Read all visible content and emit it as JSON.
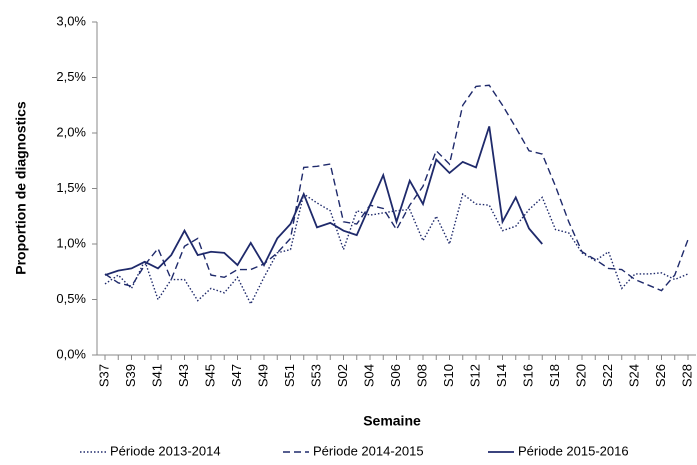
{
  "chart_data": {
    "type": "line",
    "y_label": "Proportion de diagnostics",
    "x_label": "Semaine",
    "categories": [
      "S37",
      null,
      "S39",
      null,
      "S41",
      null,
      "S43",
      null,
      "S45",
      null,
      "S47",
      null,
      "S49",
      null,
      "S51",
      null,
      "S53",
      null,
      "S02",
      null,
      "S04",
      null,
      "S06",
      null,
      "S08",
      null,
      "S10",
      null,
      "S12",
      null,
      "S14",
      null,
      "S16",
      null,
      "S18",
      null,
      "S20",
      null,
      "S22",
      null,
      "S24",
      null,
      "S26",
      null,
      "S28"
    ],
    "series": [
      {
        "name": "Période 2013-2014",
        "color": "#1f2a6b",
        "dash": "dotted",
        "values": [
          0.64,
          0.72,
          0.6,
          0.85,
          0.5,
          0.68,
          0.68,
          0.49,
          0.6,
          0.56,
          0.7,
          0.46,
          0.7,
          0.92,
          0.95,
          1.45,
          1.37,
          1.3,
          0.95,
          1.3,
          1.26,
          1.28,
          1.3,
          1.31,
          1.03,
          1.25,
          1.0,
          1.45,
          1.36,
          1.35,
          1.12,
          1.16,
          1.31,
          1.42,
          1.13,
          1.1,
          0.92,
          0.85,
          0.93,
          0.6,
          0.73,
          0.73,
          0.74,
          0.68,
          0.73
        ]
      },
      {
        "name": "Période 2014-2015",
        "color": "#1f2a6b",
        "dash": "dashed",
        "values": [
          0.73,
          0.65,
          0.62,
          0.81,
          0.96,
          0.68,
          0.98,
          1.05,
          0.72,
          0.7,
          0.77,
          0.77,
          0.82,
          0.92,
          1.05,
          1.69,
          1.7,
          1.72,
          1.2,
          1.18,
          1.35,
          1.32,
          1.13,
          1.35,
          1.52,
          1.84,
          1.72,
          2.25,
          2.42,
          2.43,
          2.25,
          2.05,
          1.84,
          1.81,
          1.52,
          1.2,
          0.93,
          0.86,
          0.78,
          0.77,
          0.68,
          0.63,
          0.58,
          0.72,
          1.04
        ]
      },
      {
        "name": "Période 2015-2016",
        "color": "#1f2a6b",
        "dash": "solid",
        "values": [
          0.72,
          0.76,
          0.78,
          0.84,
          0.78,
          0.9,
          1.12,
          0.9,
          0.93,
          0.92,
          0.81,
          1.01,
          0.81,
          1.05,
          1.18,
          1.45,
          1.15,
          1.19,
          1.12,
          1.08,
          1.35,
          1.62,
          1.2,
          1.57,
          1.36,
          1.76,
          1.64,
          1.74,
          1.69,
          2.06,
          1.2,
          1.42,
          1.14,
          1.0,
          null,
          null,
          null,
          null,
          null,
          null,
          null,
          null,
          null,
          null,
          null
        ]
      }
    ],
    "ylim": [
      0,
      3
    ],
    "yticks": [
      {
        "value": 0,
        "label": "0,0%"
      },
      {
        "value": 0.5,
        "label": "0,5%"
      },
      {
        "value": 1,
        "label": "1,0%"
      },
      {
        "value": 1.5,
        "label": "1,5%"
      },
      {
        "value": 2,
        "label": "2,0%"
      },
      {
        "value": 2.5,
        "label": "2,5%"
      },
      {
        "value": 3,
        "label": "3,0%"
      }
    ],
    "grid": false,
    "legend": "bottom"
  }
}
